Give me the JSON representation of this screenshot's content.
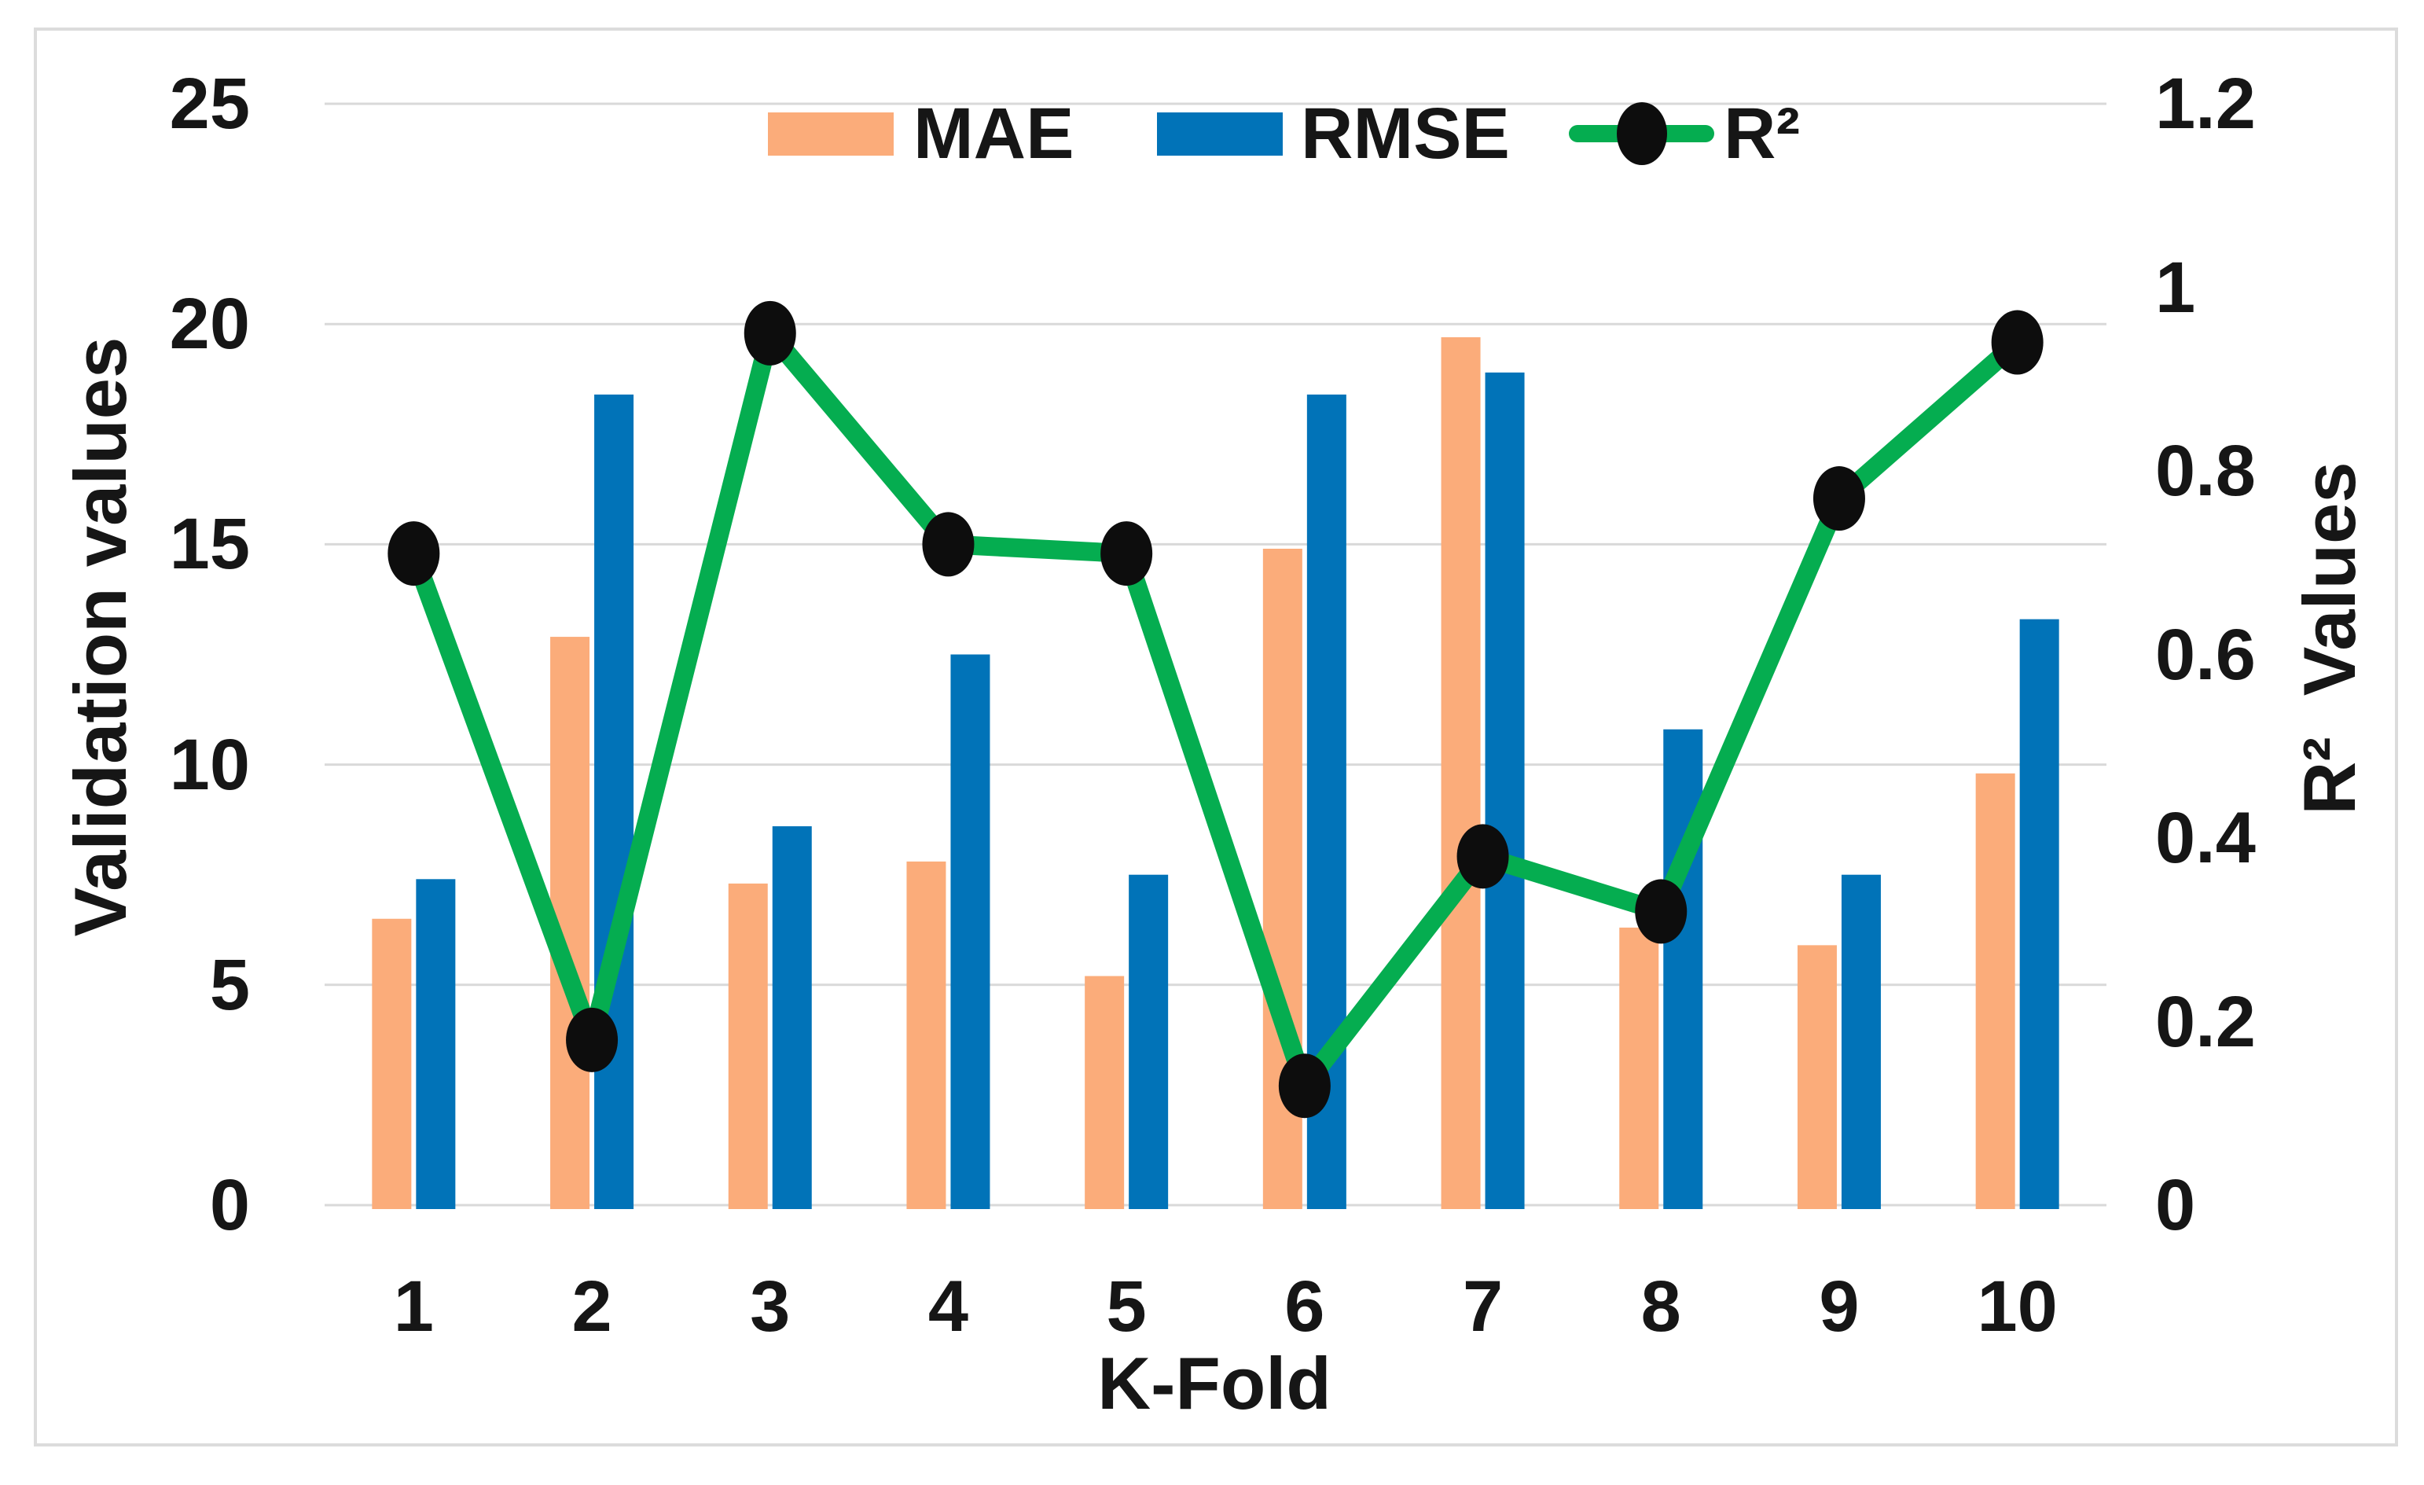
{
  "figure": {
    "description": "Combination chart of validation metrics per K-Fold",
    "x_axis_title": "K-Fold",
    "left_axis_title": "Validation values",
    "right_axis_title": "R²  Values"
  },
  "legend": {
    "position": "top",
    "items": [
      "MAE",
      "RMSE",
      "R²"
    ]
  },
  "colors": {
    "mae_bar": "#FBAC7A",
    "rmse_bar": "#0173B8",
    "r2_line": "#05AD50",
    "marker": "#0D0D0D",
    "gridline": "#D9D9D9",
    "frame_border": "#DCDCDC",
    "text": "#161616",
    "background": "#FFFFFF"
  },
  "chart_data": {
    "type": "combo",
    "subtype": [
      "bar",
      "bar",
      "line"
    ],
    "categories": [
      "1",
      "2",
      "3",
      "4",
      "5",
      "6",
      "7",
      "8",
      "9",
      "10"
    ],
    "series": [
      {
        "name": "MAE",
        "type": "bar",
        "axis": "left",
        "color": "#FBAC7A",
        "values": [
          6.5,
          12.9,
          7.3,
          7.8,
          5.2,
          14.9,
          19.7,
          6.3,
          5.9,
          9.8
        ]
      },
      {
        "name": "RMSE",
        "type": "bar",
        "axis": "left",
        "color": "#0173B8",
        "values": [
          7.4,
          18.4,
          8.6,
          12.5,
          7.5,
          18.4,
          18.9,
          10.8,
          7.5,
          13.3
        ]
      },
      {
        "name": "R²",
        "type": "line",
        "axis": "right",
        "color": "#05AD50",
        "marker": "ellipse",
        "marker_color": "#0D0D0D",
        "values": [
          0.71,
          0.18,
          0.95,
          0.72,
          0.71,
          0.13,
          0.38,
          0.32,
          0.77,
          0.94
        ]
      }
    ],
    "axes": {
      "left": {
        "title": "Validation values",
        "ticks": [
          "0",
          "5",
          "10",
          "15",
          "20",
          "25"
        ],
        "min": 0,
        "max": 25
      },
      "right": {
        "title": "R²  Values",
        "ticks": [
          "0",
          "0.2",
          "0.4",
          "0.6",
          "0.8",
          "1",
          "1.2"
        ],
        "min": 0,
        "max": 1.2
      },
      "x": {
        "title": "K-Fold"
      }
    },
    "grid": true,
    "legend_position": "top-center"
  }
}
